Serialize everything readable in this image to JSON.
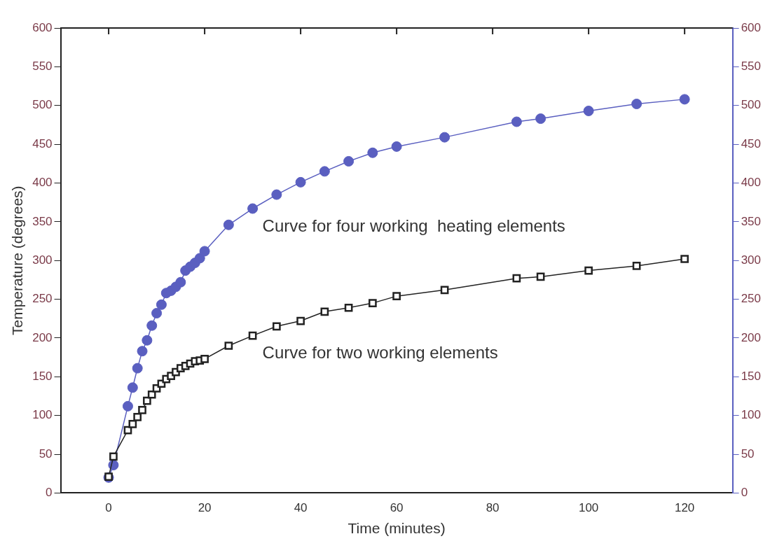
{
  "chart_data": {
    "type": "line",
    "xlabel": "Time (minutes)",
    "ylabel": "Temperature (degrees)",
    "xlim": [
      -10,
      130
    ],
    "xticks": [
      0,
      20,
      40,
      60,
      80,
      100,
      120
    ],
    "ylim": [
      0,
      600
    ],
    "yticks": [
      0,
      50,
      100,
      150,
      200,
      250,
      300,
      350,
      400,
      450,
      500,
      550,
      600
    ],
    "y2lim": [
      0,
      600
    ],
    "y2ticks": [
      0,
      50,
      100,
      150,
      200,
      250,
      300,
      350,
      400,
      450,
      500,
      550,
      600
    ],
    "grid": false,
    "legend": false,
    "line_style": "solid",
    "series": [
      {
        "name": "Curve for four working  heating elements",
        "color": "#5a5fc0",
        "axis": "y2",
        "marker": "circle",
        "x": [
          0,
          1,
          4,
          5,
          6,
          7,
          8,
          9,
          10,
          11,
          12,
          13,
          14,
          15,
          16,
          17,
          18,
          19,
          20,
          25,
          30,
          35,
          40,
          45,
          50,
          55,
          60,
          70,
          85,
          90,
          100,
          110,
          120
        ],
        "values": [
          20,
          36,
          112,
          136,
          161,
          183,
          197,
          216,
          232,
          243,
          258,
          261,
          266,
          272,
          287,
          292,
          297,
          303,
          312,
          346,
          367,
          385,
          401,
          415,
          428,
          439,
          447,
          459,
          479,
          483,
          493,
          502,
          508
        ]
      },
      {
        "name": "Curve for two working elements",
        "color": "#222222",
        "marker": "square",
        "x": [
          0,
          1,
          4,
          5,
          6,
          7,
          8,
          9,
          10,
          11,
          12,
          13,
          14,
          15,
          16,
          17,
          18,
          19,
          20,
          25,
          30,
          35,
          40,
          45,
          50,
          55,
          60,
          70,
          85,
          90,
          100,
          110,
          120
        ],
        "values": [
          21,
          47,
          81,
          89,
          98,
          107,
          119,
          127,
          135,
          141,
          147,
          151,
          156,
          161,
          164,
          167,
          170,
          171,
          173,
          190,
          203,
          215,
          222,
          234,
          239,
          245,
          254,
          262,
          277,
          279,
          287,
          293,
          302
        ]
      }
    ]
  }
}
